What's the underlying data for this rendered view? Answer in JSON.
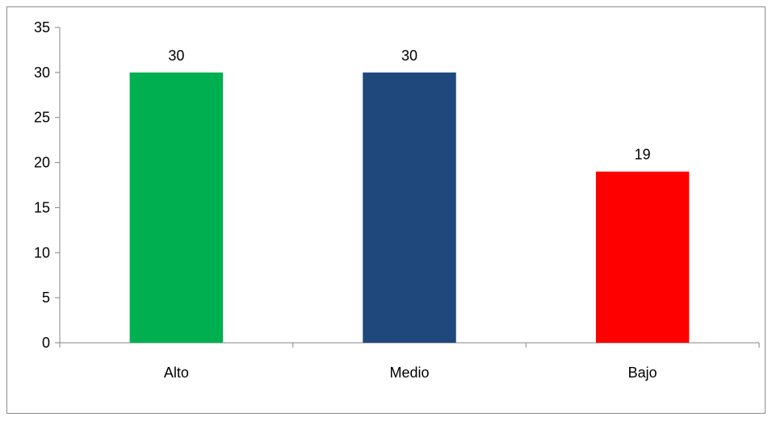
{
  "chart_data": {
    "type": "bar",
    "categories": [
      "Alto",
      "Medio",
      "Bajo"
    ],
    "values": [
      30,
      30,
      19
    ],
    "data_labels": [
      "30",
      "30",
      "19"
    ],
    "colors": [
      "#00b050",
      "#1f497d",
      "#ff0000"
    ],
    "ylim": [
      0,
      35
    ],
    "yticks": [
      0,
      5,
      10,
      15,
      20,
      25,
      30,
      35
    ],
    "grid": false,
    "legend": "none",
    "axis_color": "#868686"
  }
}
